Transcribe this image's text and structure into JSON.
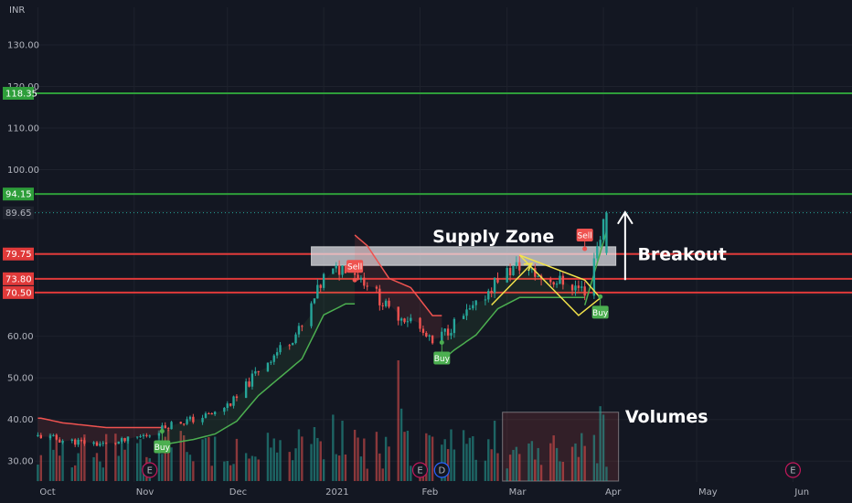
{
  "currency": "INR",
  "colors": {
    "background": "#131722",
    "grid": "#1e222d",
    "up": "#26a69a",
    "down": "#ef5350",
    "resistance": "#e03a3a",
    "target": "#2e9e3a",
    "trail_up": "#4caf50",
    "trail_down": "#ef5350",
    "flag": "#f2e34b"
  },
  "chart_data": {
    "type": "candlestick",
    "y_axis_side": "left",
    "ylim": [
      25,
      139
    ],
    "y_ticks": [
      "30.00",
      "40.00",
      "50.00",
      "60.00",
      "70.00",
      "80.00",
      "90.00",
      "100.00",
      "110.00",
      "120.00",
      "130.00"
    ],
    "x_ticks": [
      "Oct",
      "Nov",
      "Dec",
      "2021",
      "Feb",
      "Mar",
      "Apr",
      "May",
      "Jun"
    ],
    "x_tick_dates": [
      "2020-10-01",
      "2020-11-01",
      "2020-12-01",
      "2021-01-01",
      "2021-02-01",
      "2021-03-01",
      "2021-04-01",
      "2021-05-01",
      "2021-06-01"
    ],
    "x_range": [
      "2020-09-30",
      "2021-06-20"
    ],
    "grid": true,
    "horizontal_levels": [
      {
        "label": "118.35",
        "value": 118.35,
        "color": "#2e9e3a"
      },
      {
        "label": "94.15",
        "value": 94.15,
        "color": "#2e9e3a"
      },
      {
        "label": "79.75",
        "value": 79.75,
        "color": "#e03a3a"
      },
      {
        "label": "73.80",
        "value": 73.8,
        "color": "#e03a3a"
      },
      {
        "label": "70.50",
        "value": 70.5,
        "color": "#e03a3a"
      }
    ],
    "last_price_label": "89.65",
    "last_price": 89.65,
    "supply_zone": {
      "label": "Supply Zone",
      "from": 77.0,
      "to": 81.5,
      "start": "2020-12-28",
      "end": "2021-04-05"
    },
    "signals": [
      {
        "label": "Buy",
        "date": "2020-11-10",
        "price": 37.2,
        "kind": "buy"
      },
      {
        "label": "Sell",
        "date": "2021-01-11",
        "price": 73.5,
        "kind": "sell"
      },
      {
        "label": "Buy",
        "date": "2021-02-08",
        "price": 58.5,
        "kind": "buy"
      },
      {
        "label": "Sell",
        "date": "2021-03-26",
        "price": 81.0,
        "kind": "sell"
      },
      {
        "label": "Buy",
        "date": "2021-03-31",
        "price": 69.5,
        "kind": "buy"
      }
    ],
    "annotations": {
      "breakout": "Breakout",
      "volumes": "Volumes"
    },
    "event_markers": [
      {
        "label": "E",
        "date": "2020-11-06"
      },
      {
        "label": "E",
        "date": "2021-02-01"
      },
      {
        "label": "D",
        "date": "2021-02-08"
      },
      {
        "label": "E",
        "date": "2021-06-01"
      }
    ],
    "weekly_closes": [
      [
        "2020-10-02",
        36.0
      ],
      [
        "2020-10-09",
        35.0
      ],
      [
        "2020-10-16",
        34.5
      ],
      [
        "2020-10-23",
        34.0
      ],
      [
        "2020-10-30",
        35.0
      ],
      [
        "2020-11-06",
        36.5
      ],
      [
        "2020-11-13",
        39.0
      ],
      [
        "2020-11-20",
        40.0
      ],
      [
        "2020-11-27",
        41.5
      ],
      [
        "2020-12-04",
        45.0
      ],
      [
        "2020-12-11",
        52.0
      ],
      [
        "2020-12-18",
        57.0
      ],
      [
        "2020-12-25",
        62.0
      ],
      [
        "2021-01-01",
        74.0
      ],
      [
        "2021-01-08",
        77.0
      ],
      [
        "2021-01-15",
        73.0
      ],
      [
        "2021-01-22",
        66.0
      ],
      [
        "2021-01-29",
        64.0
      ],
      [
        "2021-02-05",
        58.0
      ],
      [
        "2021-02-12",
        63.0
      ],
      [
        "2021-02-19",
        67.0
      ],
      [
        "2021-02-26",
        74.0
      ],
      [
        "2021-03-05",
        77.0
      ],
      [
        "2021-03-12",
        74.0
      ],
      [
        "2021-03-19",
        73.0
      ],
      [
        "2021-03-26",
        71.0
      ],
      [
        "2021-04-02",
        89.65
      ]
    ]
  }
}
